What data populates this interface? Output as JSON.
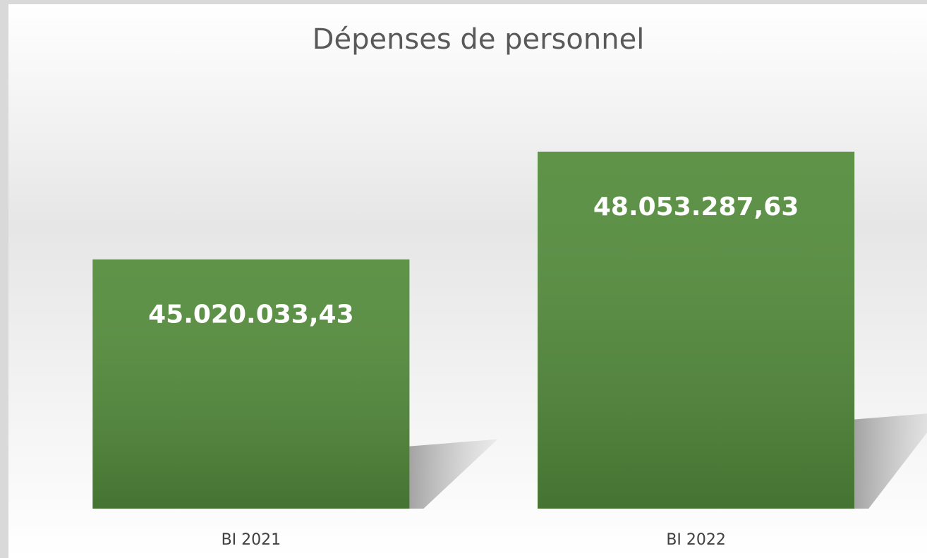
{
  "chart_data": {
    "type": "bar",
    "title": "Dépenses de personnel",
    "categories": [
      "BI 2021",
      "BI 2022"
    ],
    "values": [
      45020033.43,
      48053287.63
    ],
    "value_labels": [
      "45.020.033,43",
      "48.053.287,63"
    ],
    "color": "#548c3c",
    "ylim": [
      38000000,
      50000000
    ]
  }
}
